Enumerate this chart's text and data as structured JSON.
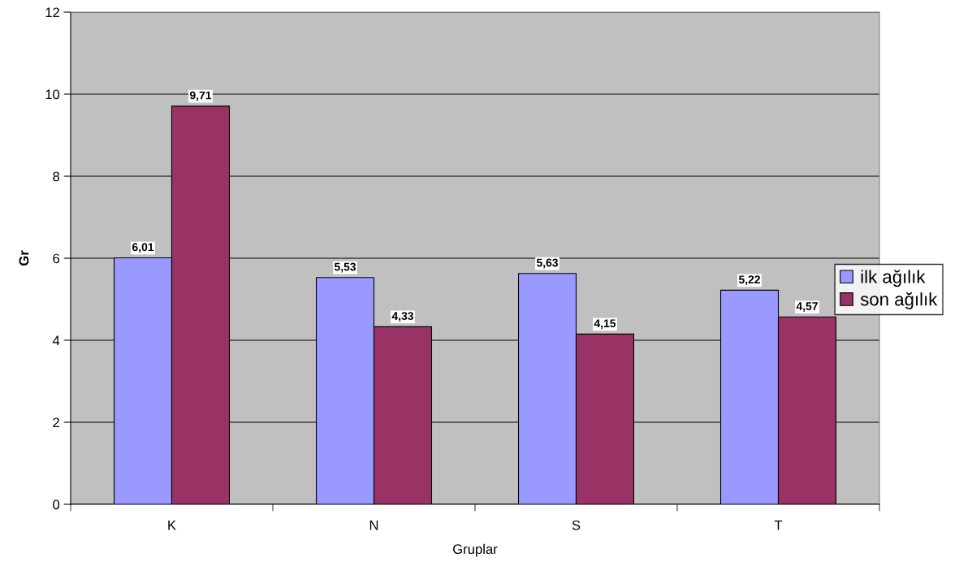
{
  "chart_data": {
    "type": "bar",
    "xlabel": "Gruplar",
    "ylabel": "Gr",
    "categories": [
      "K",
      "N",
      "S",
      "T"
    ],
    "series": [
      {
        "name": "ilk ağılık",
        "color": "#9999ff",
        "values": [
          6.01,
          5.53,
          5.63,
          5.22
        ],
        "value_labels": [
          "6,01",
          "5,53",
          "5,63",
          "5,22"
        ]
      },
      {
        "name": "son ağılık",
        "color": "#993366",
        "values": [
          9.71,
          4.33,
          4.15,
          4.57
        ],
        "value_labels": [
          "9,71",
          "4,33",
          "4,15",
          "4,57"
        ]
      }
    ],
    "ylim": [
      0,
      12
    ],
    "yticks": [
      0,
      2,
      4,
      6,
      8,
      10,
      12
    ],
    "grid": "y",
    "legend": "right"
  }
}
